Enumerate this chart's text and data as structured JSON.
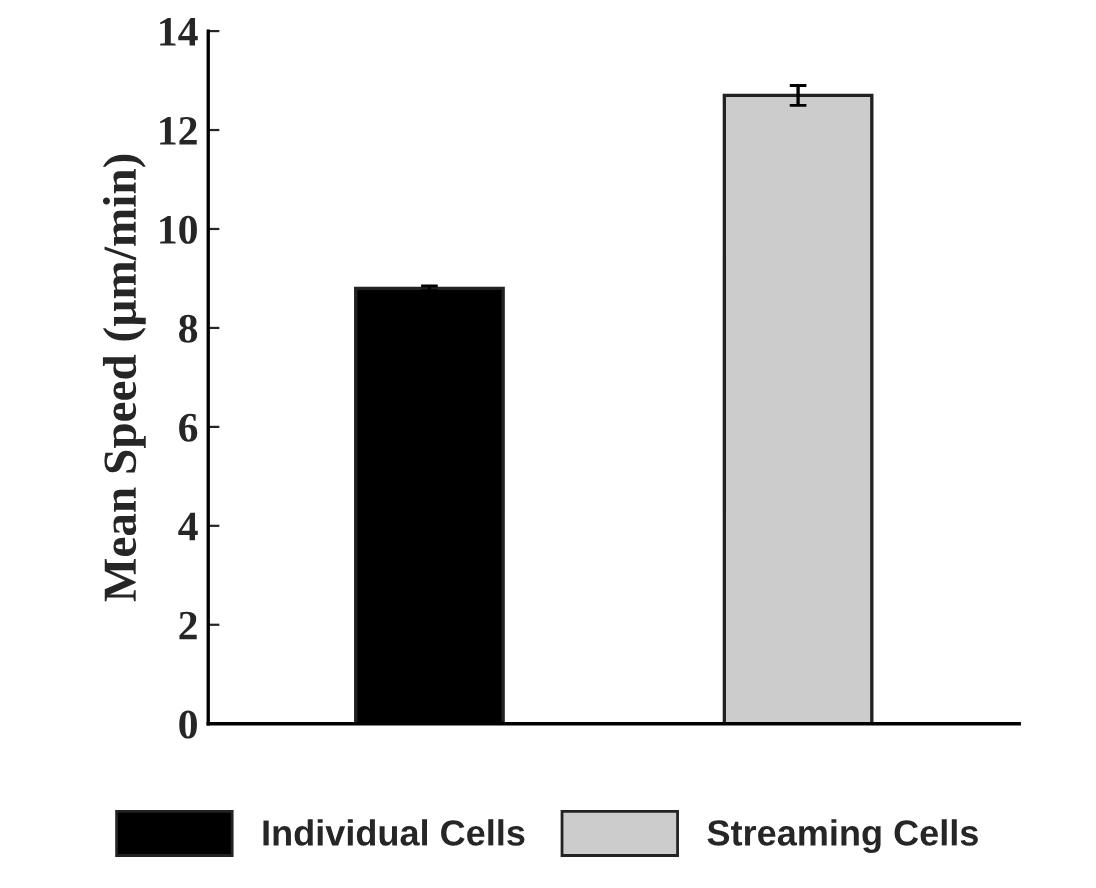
{
  "chart_data": {
    "type": "bar",
    "ylabel": "Mean Speed (µm/min)",
    "categories": [
      null,
      null
    ],
    "series": [
      {
        "name": "Individual Cells",
        "color": "#000000",
        "values": [
          8.8,
          null
        ],
        "errors": [
          0.05,
          null
        ]
      },
      {
        "name": "Streaming Cells",
        "color": "#cccccc",
        "values": [
          null,
          12.7
        ],
        "errors": [
          null,
          0.2
        ]
      }
    ],
    "ylim": [
      0,
      14
    ],
    "yticks": [
      0,
      2,
      4,
      6,
      8,
      10,
      12,
      14
    ],
    "grid": false,
    "legend": "bottom",
    "tick_labels": "y"
  }
}
